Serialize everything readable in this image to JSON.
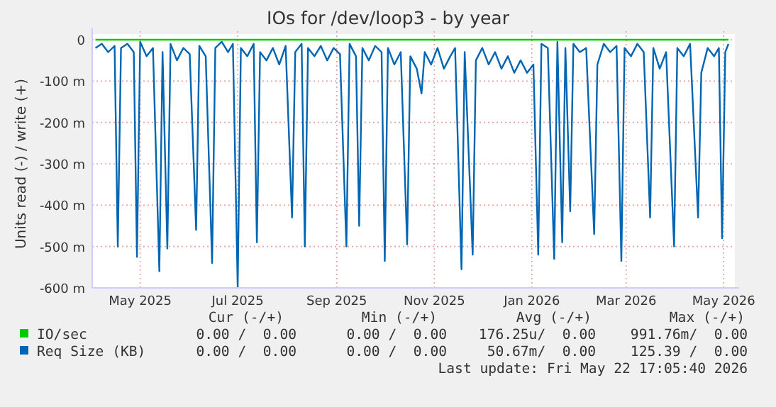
{
  "chart_data": {
    "type": "line",
    "title": "IOs for /dev/loop3 - by year",
    "ylabel": "Units read (-) / write (+)",
    "xlim": [
      "2025-04-01",
      "2026-05-08"
    ],
    "xticks": [
      {
        "value": "2025-05-01",
        "label": "May 2025"
      },
      {
        "value": "2025-07-01",
        "label": "Jul 2025"
      },
      {
        "value": "2025-09-01",
        "label": "Sep 2025"
      },
      {
        "value": "2025-11-01",
        "label": "Nov 2025"
      },
      {
        "value": "2026-01-01",
        "label": "Jan 2026"
      },
      {
        "value": "2026-03-01",
        "label": "Mar 2026"
      },
      {
        "value": "2026-05-01",
        "label": "May 2026"
      }
    ],
    "ylim": [
      -600,
      0
    ],
    "yticks": [
      {
        "value": -600,
        "label": "-600 m"
      },
      {
        "value": -500,
        "label": "-500 m"
      },
      {
        "value": -400,
        "label": "-400 m"
      },
      {
        "value": -300,
        "label": "-300 m"
      },
      {
        "value": -200,
        "label": "-200 m"
      },
      {
        "value": -100,
        "label": "-100 m"
      },
      0
    ],
    "grid": true,
    "legend": "bottom",
    "series": [
      {
        "name": "IO/sec",
        "color": "#00cc00",
        "x": [
          "2025-04-03",
          "2026-05-04"
        ],
        "values": [
          0,
          0
        ]
      },
      {
        "name": "Req Size (KB)",
        "color": "#0066b3",
        "x": [
          "2025-04-03",
          "2025-04-07",
          "2025-04-11",
          "2025-04-15",
          "2025-04-17",
          "2025-04-19",
          "2025-04-23",
          "2025-04-27",
          "2025-04-29",
          "2025-05-01",
          "2025-05-05",
          "2025-05-09",
          "2025-05-13",
          "2025-05-15",
          "2025-05-18",
          "2025-05-20",
          "2025-05-24",
          "2025-05-28",
          "2025-06-01",
          "2025-06-05",
          "2025-06-07",
          "2025-06-11",
          "2025-06-15",
          "2025-06-17",
          "2025-06-21",
          "2025-06-25",
          "2025-06-28",
          "2025-07-01",
          "2025-07-03",
          "2025-07-07",
          "2025-07-11",
          "2025-07-13",
          "2025-07-15",
          "2025-07-19",
          "2025-07-23",
          "2025-07-27",
          "2025-07-31",
          "2025-08-04",
          "2025-08-06",
          "2025-08-10",
          "2025-08-12",
          "2025-08-14",
          "2025-08-18",
          "2025-08-22",
          "2025-08-26",
          "2025-08-30",
          "2025-09-03",
          "2025-09-07",
          "2025-09-09",
          "2025-09-13",
          "2025-09-15",
          "2025-09-17",
          "2025-09-21",
          "2025-09-25",
          "2025-09-29",
          "2025-10-01",
          "2025-10-03",
          "2025-10-07",
          "2025-10-11",
          "2025-10-15",
          "2025-10-17",
          "2025-10-21",
          "2025-10-24",
          "2025-10-26",
          "2025-10-30",
          "2025-11-03",
          "2025-11-07",
          "2025-11-11",
          "2025-11-14",
          "2025-11-18",
          "2025-11-20",
          "2025-11-25",
          "2025-11-27",
          "2025-12-01",
          "2025-12-05",
          "2025-12-09",
          "2025-12-13",
          "2025-12-17",
          "2025-12-21",
          "2025-12-25",
          "2025-12-29",
          "2026-01-02",
          "2026-01-05",
          "2026-01-07",
          "2026-01-11",
          "2026-01-15",
          "2026-01-17",
          "2026-01-20",
          "2026-01-22",
          "2026-01-25",
          "2026-01-27",
          "2026-01-31",
          "2026-02-04",
          "2026-02-09",
          "2026-02-11",
          "2026-02-15",
          "2026-02-19",
          "2026-02-23",
          "2026-02-26",
          "2026-02-28",
          "2026-03-04",
          "2026-03-08",
          "2026-03-12",
          "2026-03-16",
          "2026-03-18",
          "2026-03-22",
          "2026-03-26",
          "2026-03-31",
          "2026-04-02",
          "2026-04-06",
          "2026-04-10",
          "2026-04-15",
          "2026-04-17",
          "2026-04-21",
          "2026-04-25",
          "2026-04-28",
          "2026-04-30",
          "2026-05-02",
          "2026-05-04"
        ],
        "values": [
          -20,
          -10,
          -30,
          -15,
          -500,
          -20,
          -10,
          -30,
          -525,
          -5,
          -40,
          -20,
          -560,
          -30,
          -505,
          -10,
          -50,
          -20,
          -35,
          -460,
          -15,
          -40,
          -540,
          -20,
          -5,
          -30,
          -10,
          -600,
          -20,
          -40,
          -10,
          -490,
          -30,
          -50,
          -20,
          -60,
          -15,
          -430,
          -30,
          -10,
          -500,
          -20,
          -40,
          -15,
          -50,
          -20,
          -35,
          -500,
          -10,
          -40,
          -450,
          -20,
          -50,
          -15,
          -30,
          -535,
          -20,
          -60,
          -30,
          -495,
          -40,
          -70,
          -130,
          -30,
          -60,
          -20,
          -70,
          -40,
          -20,
          -555,
          -30,
          -520,
          -50,
          -20,
          -60,
          -30,
          -70,
          -40,
          -80,
          -50,
          -80,
          -60,
          -520,
          -10,
          -20,
          -530,
          -5,
          -490,
          -20,
          -415,
          -10,
          -30,
          -20,
          -470,
          -60,
          -10,
          -30,
          -15,
          -535,
          -20,
          -40,
          -10,
          -30,
          -430,
          -20,
          -70,
          -30,
          -500,
          -20,
          -40,
          -10,
          -430,
          -80,
          -20,
          -40,
          -20,
          -480,
          -30,
          -10
        ]
      }
    ],
    "annotations": [
      "Cur (-/+)",
      "Min (-/+)",
      "Avg (-/+)",
      "Max (-/+)",
      "0.00 /  0.00",
      "0.00 /  0.00",
      "176.25u/  0.00",
      "991.76m/  0.00",
      "0.00 /  0.00",
      "0.00 /  0.00",
      "50.67m/  0.00",
      "125.39 /  0.00",
      "Last update: Fri May 22 17:05:40 2026"
    ]
  }
}
